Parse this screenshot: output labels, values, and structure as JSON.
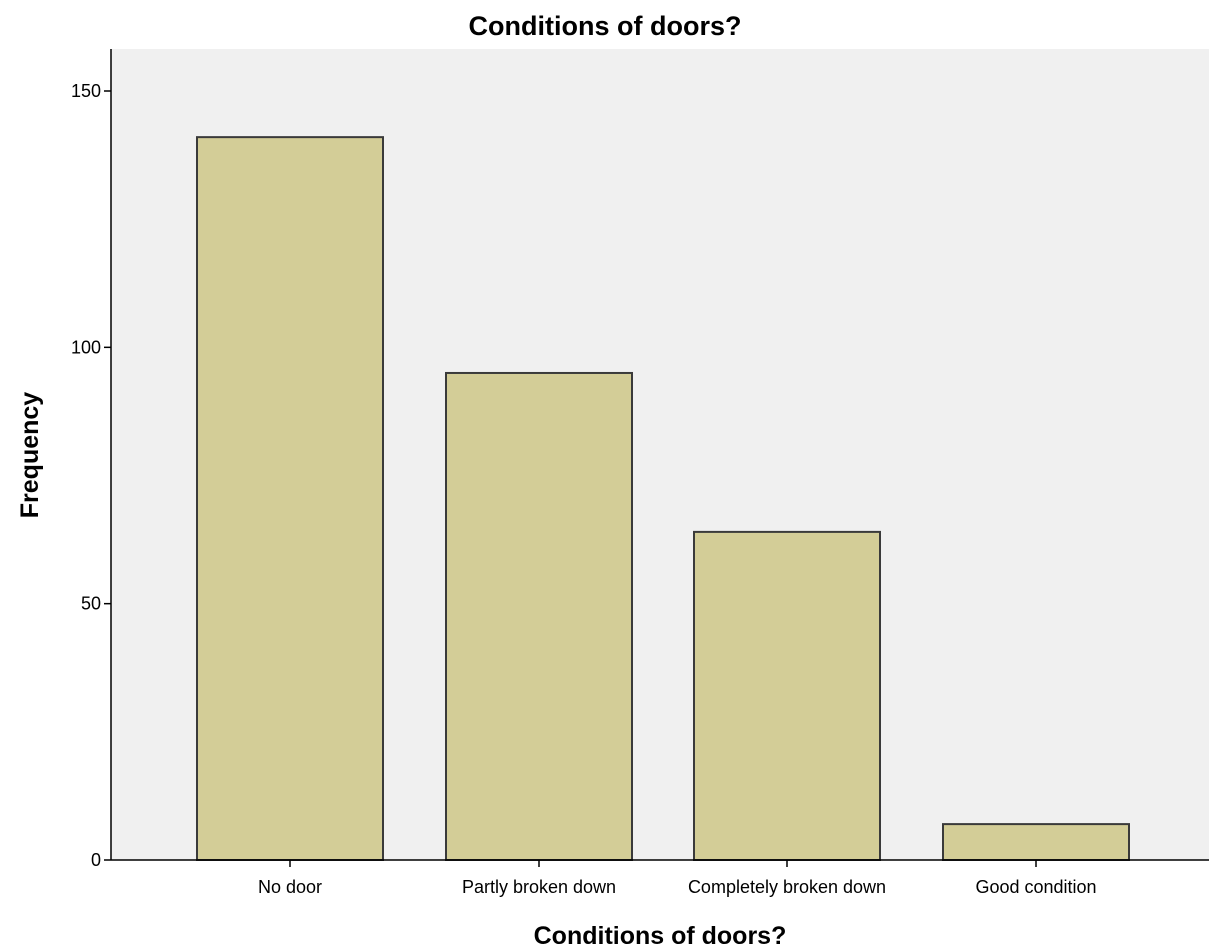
{
  "chart_data": {
    "type": "bar",
    "title": "Conditions of doors?",
    "xlabel": "Conditions of doors?",
    "ylabel": "Frequency",
    "categories": [
      "No door",
      "Partly broken down",
      "Completely broken down",
      "Good condition"
    ],
    "values": [
      141,
      95,
      64,
      7
    ],
    "ylim": [
      0,
      150
    ],
    "yticks": [
      "0",
      "50",
      "100",
      "150"
    ],
    "grid": false,
    "legend": "none",
    "colors": {
      "bar_fill": "#D3CD97",
      "bar_stroke": "#3A3A3A",
      "plot_background": "#F0F0F0",
      "axis": "#000000"
    }
  }
}
